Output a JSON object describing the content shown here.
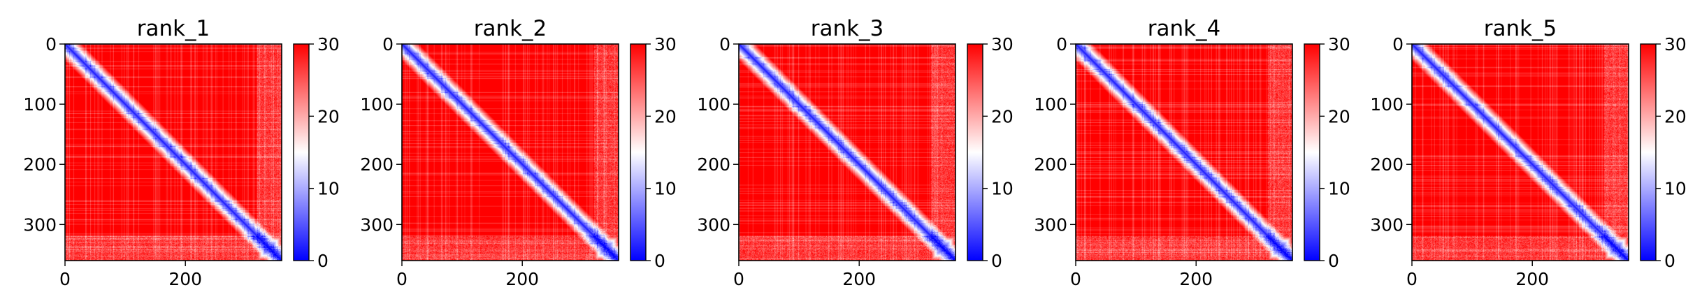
{
  "chart_data": [
    {
      "type": "heatmap",
      "title": "rank_1",
      "matrix_size": 360,
      "xlim": [
        0,
        360
      ],
      "ylim": [
        360,
        0
      ],
      "x_ticks": [
        0,
        200
      ],
      "y_ticks": [
        0,
        100,
        200,
        300
      ],
      "colorbar": {
        "range": [
          0,
          30
        ],
        "ticks": [
          0,
          10,
          20,
          30
        ],
        "colormap": "bwr"
      },
      "diagonal_blocks": [
        {
          "start": 22,
          "end": 48,
          "center_value": 9
        },
        {
          "start": 108,
          "end": 120,
          "center_value": 12
        },
        {
          "start": 196,
          "end": 214,
          "center_value": 2
        },
        {
          "start": 318,
          "end": 360,
          "center_value": 4
        }
      ]
    },
    {
      "type": "heatmap",
      "title": "rank_2",
      "matrix_size": 360,
      "xlim": [
        0,
        360
      ],
      "ylim": [
        360,
        0
      ],
      "x_ticks": [
        0,
        200
      ],
      "y_ticks": [
        0,
        100,
        200,
        300
      ],
      "colorbar": {
        "range": [
          0,
          30
        ],
        "ticks": [
          0,
          10,
          20,
          30
        ],
        "colormap": "bwr"
      },
      "diagonal_blocks": [
        {
          "start": 22,
          "end": 48,
          "center_value": 8
        },
        {
          "start": 108,
          "end": 120,
          "center_value": 12
        },
        {
          "start": 196,
          "end": 214,
          "center_value": 2
        },
        {
          "start": 318,
          "end": 360,
          "center_value": 4
        }
      ]
    },
    {
      "type": "heatmap",
      "title": "rank_3",
      "matrix_size": 360,
      "xlim": [
        0,
        360
      ],
      "ylim": [
        360,
        0
      ],
      "x_ticks": [
        0,
        200
      ],
      "y_ticks": [
        0,
        100,
        200,
        300
      ],
      "colorbar": {
        "range": [
          0,
          30
        ],
        "ticks": [
          0,
          10,
          20,
          30
        ],
        "colormap": "bwr"
      },
      "diagonal_blocks": [
        {
          "start": 22,
          "end": 48,
          "center_value": 9
        },
        {
          "start": 108,
          "end": 120,
          "center_value": 12
        },
        {
          "start": 196,
          "end": 214,
          "center_value": 2
        },
        {
          "start": 318,
          "end": 360,
          "center_value": 4
        }
      ]
    },
    {
      "type": "heatmap",
      "title": "rank_4",
      "matrix_size": 360,
      "xlim": [
        0,
        360
      ],
      "ylim": [
        360,
        0
      ],
      "x_ticks": [
        0,
        200
      ],
      "y_ticks": [
        0,
        100,
        200,
        300
      ],
      "colorbar": {
        "range": [
          0,
          30
        ],
        "ticks": [
          0,
          10,
          20,
          30
        ],
        "colormap": "bwr"
      },
      "diagonal_blocks": [
        {
          "start": 22,
          "end": 48,
          "center_value": 9
        },
        {
          "start": 108,
          "end": 120,
          "center_value": 12
        },
        {
          "start": 196,
          "end": 214,
          "center_value": 3
        },
        {
          "start": 318,
          "end": 360,
          "center_value": 4
        }
      ]
    },
    {
      "type": "heatmap",
      "title": "rank_5",
      "matrix_size": 360,
      "xlim": [
        0,
        360
      ],
      "ylim": [
        360,
        0
      ],
      "x_ticks": [
        0,
        200
      ],
      "y_ticks": [
        0,
        100,
        200,
        300
      ],
      "colorbar": {
        "range": [
          0,
          30
        ],
        "ticks": [
          0,
          10,
          20,
          30
        ],
        "colormap": "bwr"
      },
      "diagonal_blocks": [
        {
          "start": 22,
          "end": 48,
          "center_value": 9
        },
        {
          "start": 108,
          "end": 120,
          "center_value": 12
        },
        {
          "start": 196,
          "end": 214,
          "center_value": 2
        },
        {
          "start": 318,
          "end": 360,
          "center_value": 4
        }
      ]
    }
  ]
}
